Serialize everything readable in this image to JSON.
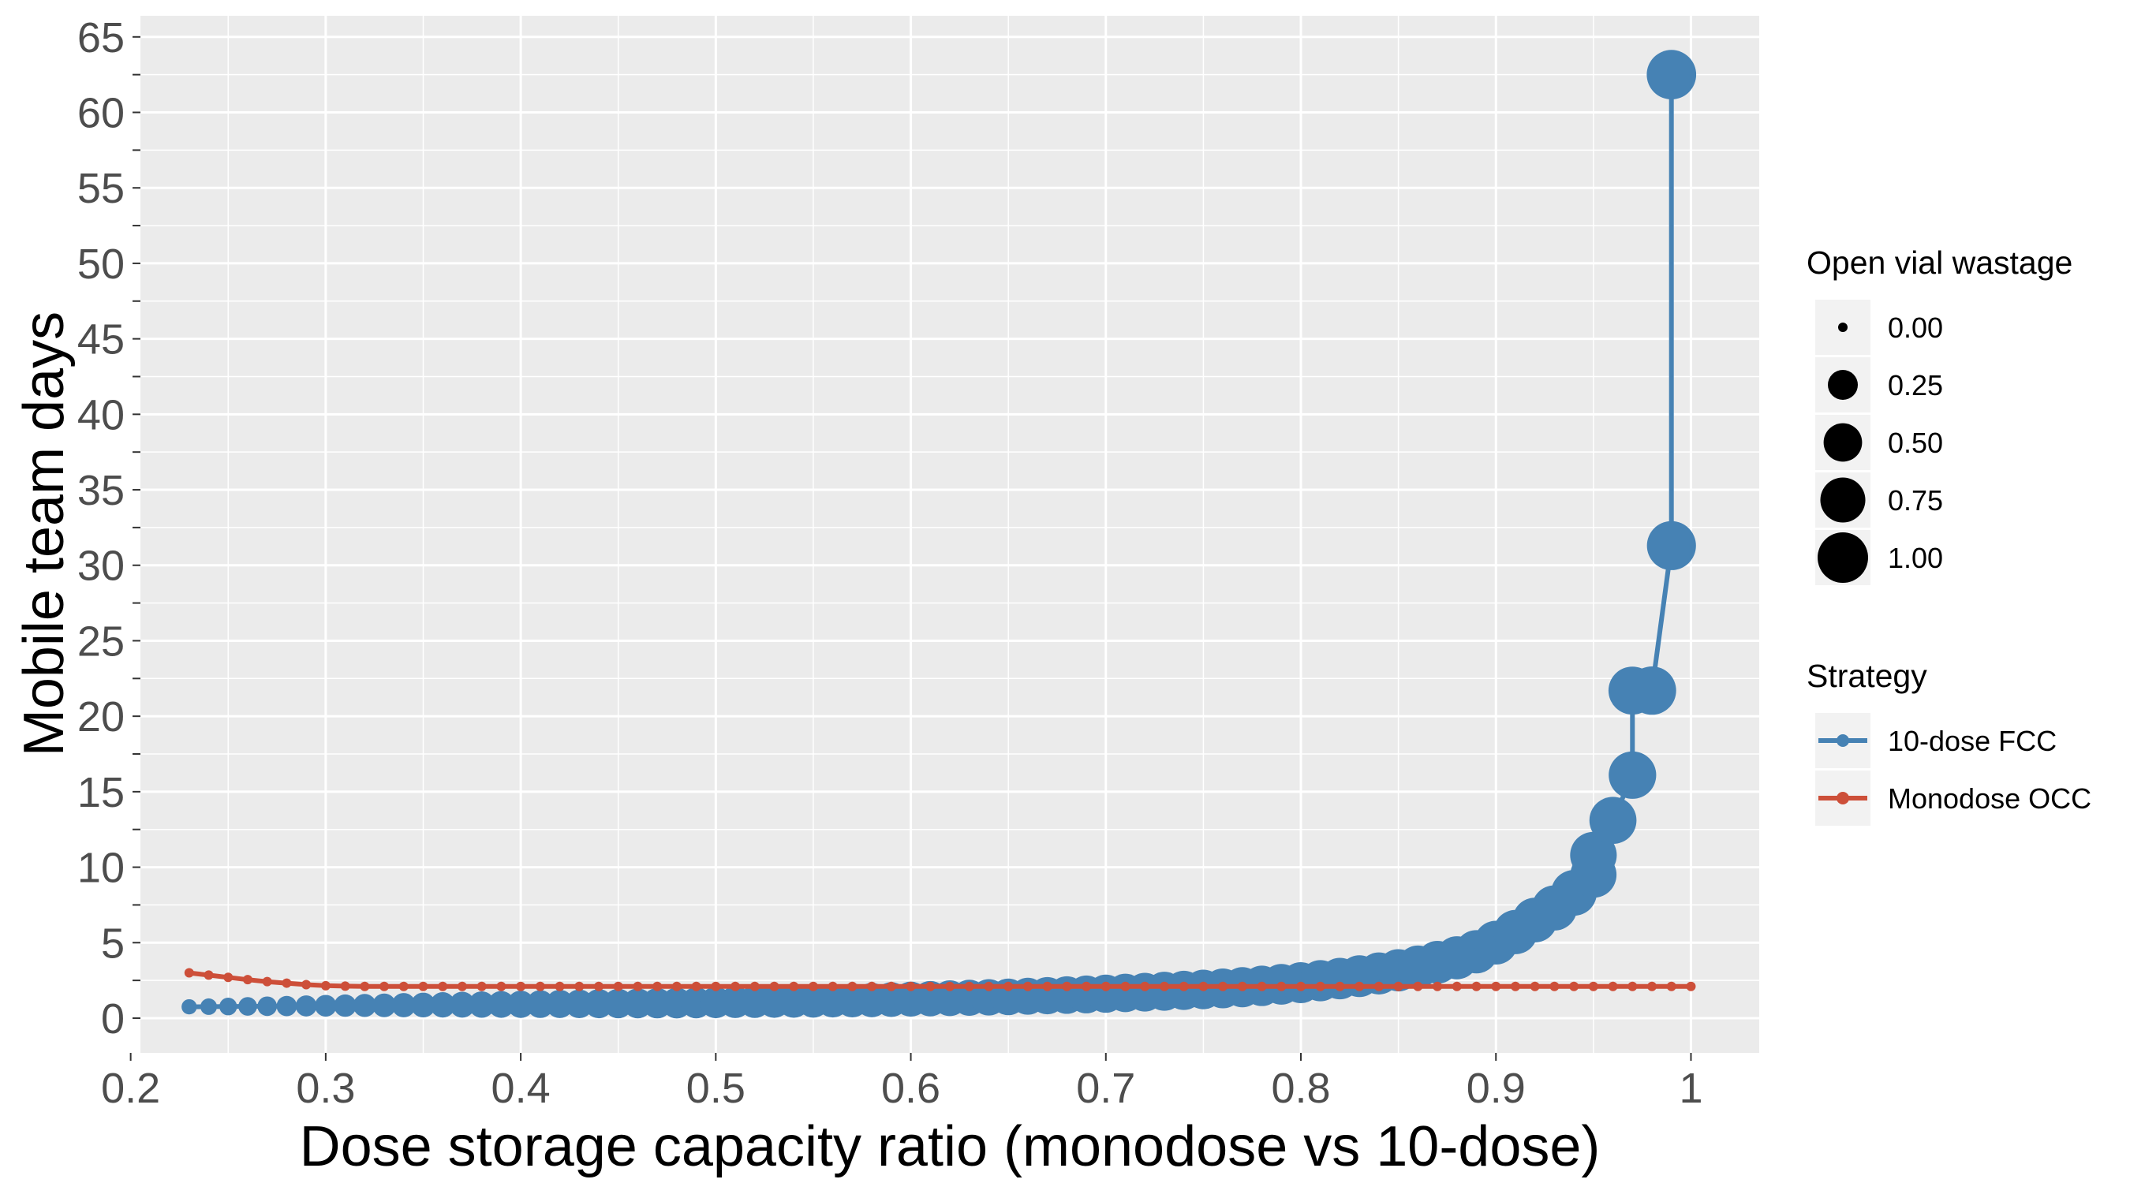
{
  "chart_data": {
    "type": "line",
    "xlabel": "Dose storage capacity ratio (monodose vs 10-dose)",
    "ylabel": "Mobile team days",
    "xlim": [
      0.205,
      1.035
    ],
    "ylim": [
      -2.3,
      66.4
    ],
    "x_ticks": [
      0.2,
      0.3,
      0.4,
      0.5,
      0.6,
      0.7,
      0.8,
      0.9,
      1.0
    ],
    "x_tick_labels": [
      "0.2",
      "0.3",
      "0.4",
      "0.5",
      "0.6",
      "0.7",
      "0.8",
      "0.9",
      "1"
    ],
    "y_ticks": [
      0,
      5,
      10,
      15,
      20,
      25,
      30,
      35,
      40,
      45,
      50,
      55,
      60,
      65
    ],
    "y_tick_labels": [
      "0",
      "5",
      "10",
      "15",
      "20",
      "25",
      "30",
      "35",
      "40",
      "45",
      "50",
      "55",
      "60",
      "65"
    ],
    "grid": true,
    "legend_position": "right",
    "size_legend": {
      "title": "Open vial wastage",
      "values": [
        0.0,
        0.25,
        0.5,
        0.75,
        1.0
      ],
      "labels": [
        "0.00",
        "0.25",
        "0.50",
        "0.75",
        "1.00"
      ]
    },
    "color_legend": {
      "title": "Strategy"
    },
    "series": [
      {
        "name": "10-dose FCC",
        "color": "#4682B4",
        "x": [
          0.23,
          0.24,
          0.25,
          0.26,
          0.27,
          0.28,
          0.29,
          0.3,
          0.31,
          0.32,
          0.33,
          0.34,
          0.35,
          0.36,
          0.37,
          0.38,
          0.39,
          0.4,
          0.41,
          0.42,
          0.43,
          0.44,
          0.45,
          0.46,
          0.47,
          0.48,
          0.49,
          0.5,
          0.51,
          0.52,
          0.53,
          0.54,
          0.55,
          0.56,
          0.57,
          0.58,
          0.59,
          0.6,
          0.61,
          0.62,
          0.63,
          0.64,
          0.65,
          0.66,
          0.67,
          0.68,
          0.69,
          0.7,
          0.71,
          0.72,
          0.73,
          0.74,
          0.75,
          0.76,
          0.77,
          0.78,
          0.79,
          0.8,
          0.81,
          0.82,
          0.83,
          0.84,
          0.85,
          0.86,
          0.87,
          0.88,
          0.89,
          0.9,
          0.91,
          0.92,
          0.93,
          0.94,
          0.95,
          0.95,
          0.96,
          0.97,
          0.97,
          0.98,
          0.99,
          0.99
        ],
        "y": [
          0.75,
          0.76,
          0.77,
          0.78,
          0.79,
          0.8,
          0.81,
          0.82,
          0.83,
          0.84,
          0.85,
          0.86,
          0.87,
          0.88,
          0.89,
          0.9,
          0.91,
          0.92,
          0.93,
          0.94,
          0.95,
          0.96,
          0.97,
          0.98,
          0.99,
          1.0,
          1.02,
          1.04,
          1.06,
          1.08,
          1.1,
          1.12,
          1.14,
          1.16,
          1.18,
          1.2,
          1.23,
          1.26,
          1.29,
          1.32,
          1.35,
          1.38,
          1.41,
          1.45,
          1.49,
          1.53,
          1.57,
          1.62,
          1.67,
          1.72,
          1.78,
          1.84,
          1.9,
          1.97,
          2.05,
          2.14,
          2.24,
          2.35,
          2.48,
          2.62,
          2.78,
          2.96,
          3.17,
          3.4,
          3.7,
          4.0,
          4.4,
          5.0,
          5.7,
          6.5,
          7.3,
          8.3,
          9.5,
          10.8,
          13.1,
          16.1,
          21.7,
          21.7,
          31.3,
          62.5
        ],
        "sizes": [
          0.02,
          0.03,
          0.04,
          0.05,
          0.06,
          0.07,
          0.08,
          0.09,
          0.1,
          0.11,
          0.12,
          0.13,
          0.14,
          0.15,
          0.16,
          0.17,
          0.18,
          0.19,
          0.2,
          0.21,
          0.22,
          0.23,
          0.24,
          0.25,
          0.26,
          0.27,
          0.28,
          0.29,
          0.3,
          0.31,
          0.32,
          0.33,
          0.34,
          0.35,
          0.36,
          0.37,
          0.38,
          0.39,
          0.4,
          0.41,
          0.42,
          0.43,
          0.44,
          0.45,
          0.46,
          0.47,
          0.48,
          0.49,
          0.5,
          0.51,
          0.52,
          0.53,
          0.54,
          0.55,
          0.56,
          0.57,
          0.58,
          0.59,
          0.6,
          0.61,
          0.62,
          0.63,
          0.64,
          0.65,
          0.66,
          0.67,
          0.68,
          0.7,
          0.72,
          0.74,
          0.76,
          0.78,
          0.8,
          0.82,
          0.84,
          0.86,
          0.88,
          0.9,
          0.93,
          0.95
        ]
      },
      {
        "name": "Monodose OCC",
        "color": "#CD4F39",
        "x": [
          0.23,
          0.24,
          0.25,
          0.26,
          0.27,
          0.28,
          0.29,
          0.3,
          0.31,
          0.32,
          0.33,
          0.34,
          0.35,
          0.36,
          0.37,
          0.38,
          0.39,
          0.4,
          0.41,
          0.42,
          0.43,
          0.44,
          0.45,
          0.46,
          0.47,
          0.48,
          0.49,
          0.5,
          0.51,
          0.52,
          0.53,
          0.54,
          0.55,
          0.56,
          0.57,
          0.58,
          0.59,
          0.6,
          0.61,
          0.62,
          0.63,
          0.64,
          0.65,
          0.66,
          0.67,
          0.68,
          0.69,
          0.7,
          0.71,
          0.72,
          0.73,
          0.74,
          0.75,
          0.76,
          0.77,
          0.78,
          0.79,
          0.8,
          0.81,
          0.82,
          0.83,
          0.84,
          0.85,
          0.86,
          0.87,
          0.88,
          0.89,
          0.9,
          0.91,
          0.92,
          0.93,
          0.94,
          0.95,
          0.96,
          0.97,
          0.98,
          0.99,
          1.0
        ],
        "y": [
          3.0,
          2.85,
          2.7,
          2.55,
          2.42,
          2.32,
          2.22,
          2.15,
          2.12,
          2.1,
          2.1,
          2.1,
          2.1,
          2.1,
          2.1,
          2.1,
          2.1,
          2.1,
          2.1,
          2.1,
          2.1,
          2.1,
          2.1,
          2.1,
          2.1,
          2.1,
          2.1,
          2.1,
          2.1,
          2.1,
          2.1,
          2.1,
          2.1,
          2.1,
          2.1,
          2.1,
          2.1,
          2.1,
          2.1,
          2.1,
          2.1,
          2.1,
          2.1,
          2.1,
          2.1,
          2.1,
          2.1,
          2.1,
          2.1,
          2.1,
          2.1,
          2.1,
          2.1,
          2.1,
          2.1,
          2.1,
          2.1,
          2.1,
          2.1,
          2.1,
          2.1,
          2.1,
          2.1,
          2.1,
          2.1,
          2.1,
          2.1,
          2.1,
          2.1,
          2.1,
          2.1,
          2.1,
          2.1,
          2.1,
          2.1,
          2.1,
          2.1,
          2.1
        ],
        "sizes": 0.0
      }
    ]
  }
}
